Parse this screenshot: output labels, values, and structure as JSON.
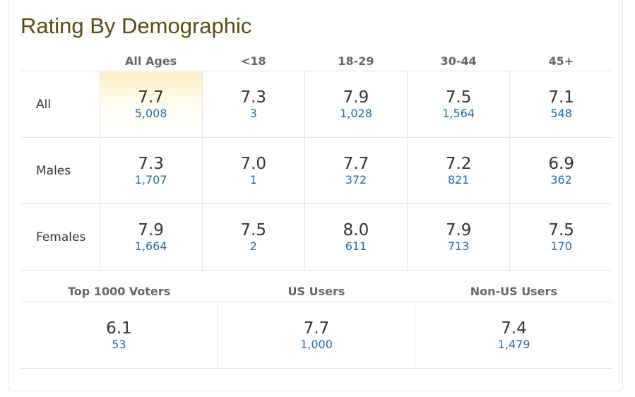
{
  "title": "Rating By Demographic",
  "age_headers": [
    "All Ages",
    "<18",
    "18-29",
    "30-44",
    "45+"
  ],
  "rows": [
    {
      "label": "All",
      "cells": [
        {
          "rating": "7.7",
          "votes": "5,008"
        },
        {
          "rating": "7.3",
          "votes": "3"
        },
        {
          "rating": "7.9",
          "votes": "1,028"
        },
        {
          "rating": "7.5",
          "votes": "1,564"
        },
        {
          "rating": "7.1",
          "votes": "548"
        }
      ]
    },
    {
      "label": "Males",
      "cells": [
        {
          "rating": "7.3",
          "votes": "1,707"
        },
        {
          "rating": "7.0",
          "votes": "1"
        },
        {
          "rating": "7.7",
          "votes": "372"
        },
        {
          "rating": "7.2",
          "votes": "821"
        },
        {
          "rating": "6.9",
          "votes": "362"
        }
      ]
    },
    {
      "label": "Females",
      "cells": [
        {
          "rating": "7.9",
          "votes": "1,664"
        },
        {
          "rating": "7.5",
          "votes": "2"
        },
        {
          "rating": "8.0",
          "votes": "611"
        },
        {
          "rating": "7.9",
          "votes": "713"
        },
        {
          "rating": "7.5",
          "votes": "170"
        }
      ]
    }
  ],
  "groups": [
    {
      "label": "Top 1000 Voters",
      "rating": "6.1",
      "votes": "53"
    },
    {
      "label": "US Users",
      "rating": "7.7",
      "votes": "1,000"
    },
    {
      "label": "Non-US Users",
      "rating": "7.4",
      "votes": "1,479"
    }
  ],
  "colors": {
    "title": "#5e4a10",
    "header_text": "#666666",
    "rating_text": "#333333",
    "vote_link": "#1f6aa5",
    "highlight": "#fff1c4",
    "border": "#e3e3e3"
  }
}
